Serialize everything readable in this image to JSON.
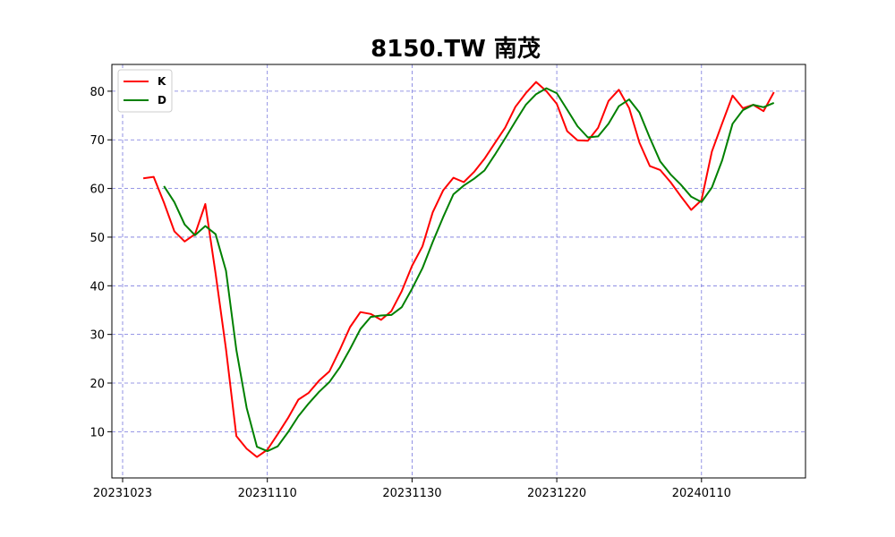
{
  "chart_data": {
    "type": "line",
    "title": "8150.TW 南茂",
    "xlabel": "",
    "ylabel": "",
    "grid": true,
    "grid_style": "dashed",
    "grid_color": "#7777dd",
    "legend_position": "top-left",
    "x_tick_labels": [
      "20231023",
      "20231110",
      "20231130",
      "20231220",
      "20240110"
    ],
    "y_ticks": [
      10,
      20,
      30,
      40,
      50,
      60,
      70,
      80
    ],
    "ylim": [
      0.5,
      85.5
    ],
    "series": [
      {
        "name": "K",
        "color": "#ff0000",
        "values": [
          null,
          null,
          62.1,
          62.4,
          57.1,
          51.2,
          49.1,
          50.6,
          56.8,
          42.5,
          27.0,
          9.1,
          6.5,
          4.8,
          6.3,
          9.5,
          12.8,
          16.6,
          18.0,
          20.5,
          22.4,
          26.8,
          31.5,
          34.6,
          34.2,
          33.0,
          34.8,
          38.9,
          44.1,
          48.1,
          55.1,
          59.6,
          62.2,
          61.3,
          63.4,
          66.1,
          69.3,
          72.5,
          76.8,
          79.6,
          81.9,
          80.0,
          77.4,
          71.8,
          69.9,
          69.8,
          72.5,
          78.0,
          80.3,
          76.5,
          69.4,
          64.6,
          63.8,
          61.3,
          58.4,
          55.6,
          57.6,
          67.6,
          73.4,
          79.1,
          76.5,
          77.2,
          75.9,
          79.8
        ]
      },
      {
        "name": "D",
        "color": "#008000",
        "values": [
          null,
          null,
          null,
          null,
          60.5,
          57.2,
          52.6,
          50.4,
          52.3,
          50.6,
          43.1,
          26.8,
          14.9,
          6.9,
          6.0,
          7.0,
          9.9,
          13.2,
          15.8,
          18.2,
          20.2,
          23.2,
          27.0,
          31.1,
          33.6,
          33.9,
          34.0,
          35.6,
          39.4,
          43.6,
          49.0,
          54.1,
          58.8,
          60.6,
          62.0,
          63.7,
          66.9,
          70.3,
          73.8,
          77.2,
          79.4,
          80.6,
          79.6,
          76.2,
          72.8,
          70.5,
          70.7,
          73.3,
          76.9,
          78.3,
          75.6,
          70.4,
          65.6,
          62.9,
          60.8,
          58.3,
          57.2,
          60.2,
          65.8,
          73.3,
          76.1,
          77.2,
          76.7,
          77.6
        ]
      }
    ]
  }
}
